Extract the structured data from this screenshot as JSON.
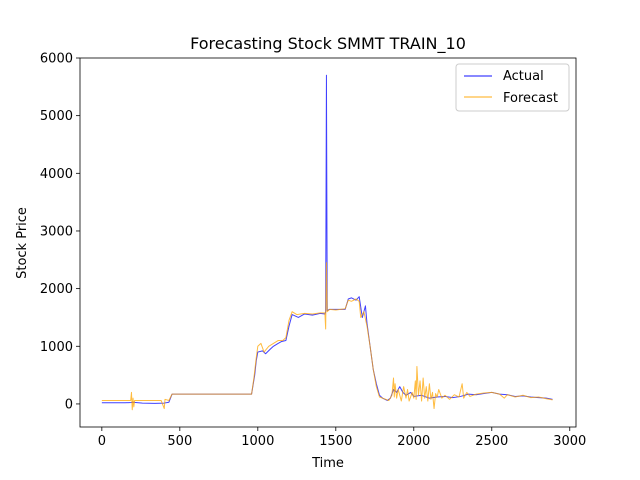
{
  "chart_data": {
    "type": "line",
    "title": "Forecasting Stock SMMT TRAIN_10",
    "xlabel": "Time",
    "ylabel": "Stock Price",
    "xlim": [
      -140,
      3040
    ],
    "ylim": [
      -400,
      6000
    ],
    "xticks": [
      0,
      500,
      1000,
      1500,
      2000,
      2500,
      3000
    ],
    "yticks": [
      0,
      1000,
      2000,
      3000,
      4000,
      5000,
      6000
    ],
    "xtick_labels": [
      "0",
      "500",
      "1000",
      "1500",
      "2000",
      "2500",
      "3000"
    ],
    "ytick_labels": [
      "0",
      "1000",
      "2000",
      "3000",
      "4000",
      "5000",
      "6000"
    ],
    "grid": false,
    "legend_position": "upper right",
    "series": [
      {
        "name": "Actual",
        "color": "#0000ff",
        "points": [
          [
            0,
            20
          ],
          [
            150,
            20
          ],
          [
            190,
            25
          ],
          [
            200,
            30
          ],
          [
            260,
            15
          ],
          [
            340,
            10
          ],
          [
            400,
            15
          ],
          [
            430,
            30
          ],
          [
            450,
            170
          ],
          [
            960,
            170
          ],
          [
            980,
            500
          ],
          [
            990,
            750
          ],
          [
            1000,
            900
          ],
          [
            1030,
            920
          ],
          [
            1050,
            870
          ],
          [
            1080,
            950
          ],
          [
            1100,
            1000
          ],
          [
            1130,
            1050
          ],
          [
            1150,
            1080
          ],
          [
            1180,
            1100
          ],
          [
            1200,
            1350
          ],
          [
            1220,
            1550
          ],
          [
            1260,
            1500
          ],
          [
            1300,
            1560
          ],
          [
            1350,
            1540
          ],
          [
            1400,
            1570
          ],
          [
            1430,
            1560
          ],
          [
            1435,
            1600
          ],
          [
            1440,
            5700
          ],
          [
            1445,
            1620
          ],
          [
            1460,
            1640
          ],
          [
            1500,
            1640
          ],
          [
            1560,
            1640
          ],
          [
            1580,
            1820
          ],
          [
            1600,
            1840
          ],
          [
            1630,
            1800
          ],
          [
            1650,
            1860
          ],
          [
            1670,
            1500
          ],
          [
            1690,
            1700
          ],
          [
            1700,
            1400
          ],
          [
            1720,
            1000
          ],
          [
            1740,
            600
          ],
          [
            1760,
            350
          ],
          [
            1780,
            150
          ],
          [
            1800,
            100
          ],
          [
            1830,
            60
          ],
          [
            1850,
            100
          ],
          [
            1870,
            250
          ],
          [
            1890,
            200
          ],
          [
            1910,
            300
          ],
          [
            1930,
            200
          ],
          [
            1950,
            150
          ],
          [
            1980,
            200
          ],
          [
            2000,
            130
          ],
          [
            2050,
            150
          ],
          [
            2100,
            100
          ],
          [
            2150,
            120
          ],
          [
            2200,
            130
          ],
          [
            2250,
            110
          ],
          [
            2300,
            130
          ],
          [
            2350,
            170
          ],
          [
            2400,
            160
          ],
          [
            2450,
            180
          ],
          [
            2500,
            200
          ],
          [
            2550,
            170
          ],
          [
            2600,
            160
          ],
          [
            2650,
            130
          ],
          [
            2700,
            140
          ],
          [
            2750,
            120
          ],
          [
            2800,
            110
          ],
          [
            2850,
            100
          ],
          [
            2890,
            80
          ]
        ]
      },
      {
        "name": "Forecast",
        "color": "#ffa500",
        "points": [
          [
            0,
            60
          ],
          [
            150,
            60
          ],
          [
            185,
            60
          ],
          [
            190,
            200
          ],
          [
            195,
            -100
          ],
          [
            200,
            100
          ],
          [
            205,
            -50
          ],
          [
            210,
            60
          ],
          [
            380,
            60
          ],
          [
            400,
            -80
          ],
          [
            405,
            80
          ],
          [
            430,
            60
          ],
          [
            450,
            170
          ],
          [
            960,
            170
          ],
          [
            975,
            450
          ],
          [
            990,
            800
          ],
          [
            1000,
            1000
          ],
          [
            1020,
            1050
          ],
          [
            1040,
            900
          ],
          [
            1070,
            1000
          ],
          [
            1100,
            1050
          ],
          [
            1130,
            1100
          ],
          [
            1160,
            1100
          ],
          [
            1180,
            1150
          ],
          [
            1200,
            1450
          ],
          [
            1220,
            1600
          ],
          [
            1250,
            1550
          ],
          [
            1300,
            1570
          ],
          [
            1350,
            1560
          ],
          [
            1400,
            1580
          ],
          [
            1430,
            1580
          ],
          [
            1435,
            1300
          ],
          [
            1440,
            2450
          ],
          [
            1445,
            1600
          ],
          [
            1460,
            1640
          ],
          [
            1500,
            1630
          ],
          [
            1560,
            1650
          ],
          [
            1580,
            1800
          ],
          [
            1600,
            1780
          ],
          [
            1630,
            1820
          ],
          [
            1650,
            1780
          ],
          [
            1660,
            1500
          ],
          [
            1680,
            1600
          ],
          [
            1700,
            1350
          ],
          [
            1720,
            1000
          ],
          [
            1740,
            600
          ],
          [
            1760,
            300
          ],
          [
            1780,
            120
          ],
          [
            1800,
            100
          ],
          [
            1840,
            60
          ],
          [
            1860,
            150
          ],
          [
            1870,
            450
          ],
          [
            1875,
            120
          ],
          [
            1880,
            350
          ],
          [
            1890,
            100
          ],
          [
            1900,
            250
          ],
          [
            1920,
            50
          ],
          [
            1935,
            300
          ],
          [
            1950,
            100
          ],
          [
            1960,
            250
          ],
          [
            1970,
            50
          ],
          [
            1990,
            200
          ],
          [
            2000,
            100
          ],
          [
            2010,
            400
          ],
          [
            2015,
            80
          ],
          [
            2020,
            650
          ],
          [
            2030,
            150
          ],
          [
            2040,
            400
          ],
          [
            2050,
            50
          ],
          [
            2060,
            450
          ],
          [
            2070,
            100
          ],
          [
            2080,
            300
          ],
          [
            2090,
            50
          ],
          [
            2100,
            350
          ],
          [
            2110,
            80
          ],
          [
            2120,
            200
          ],
          [
            2130,
            -80
          ],
          [
            2140,
            180
          ],
          [
            2150,
            120
          ],
          [
            2160,
            250
          ],
          [
            2180,
            100
          ],
          [
            2200,
            150
          ],
          [
            2230,
            80
          ],
          [
            2260,
            160
          ],
          [
            2290,
            120
          ],
          [
            2310,
            350
          ],
          [
            2320,
            100
          ],
          [
            2340,
            200
          ],
          [
            2360,
            130
          ],
          [
            2400,
            170
          ],
          [
            2450,
            190
          ],
          [
            2500,
            200
          ],
          [
            2550,
            170
          ],
          [
            2580,
            100
          ],
          [
            2600,
            160
          ],
          [
            2650,
            120
          ],
          [
            2700,
            150
          ],
          [
            2750,
            110
          ],
          [
            2800,
            120
          ],
          [
            2850,
            90
          ],
          [
            2890,
            70
          ]
        ]
      }
    ]
  }
}
